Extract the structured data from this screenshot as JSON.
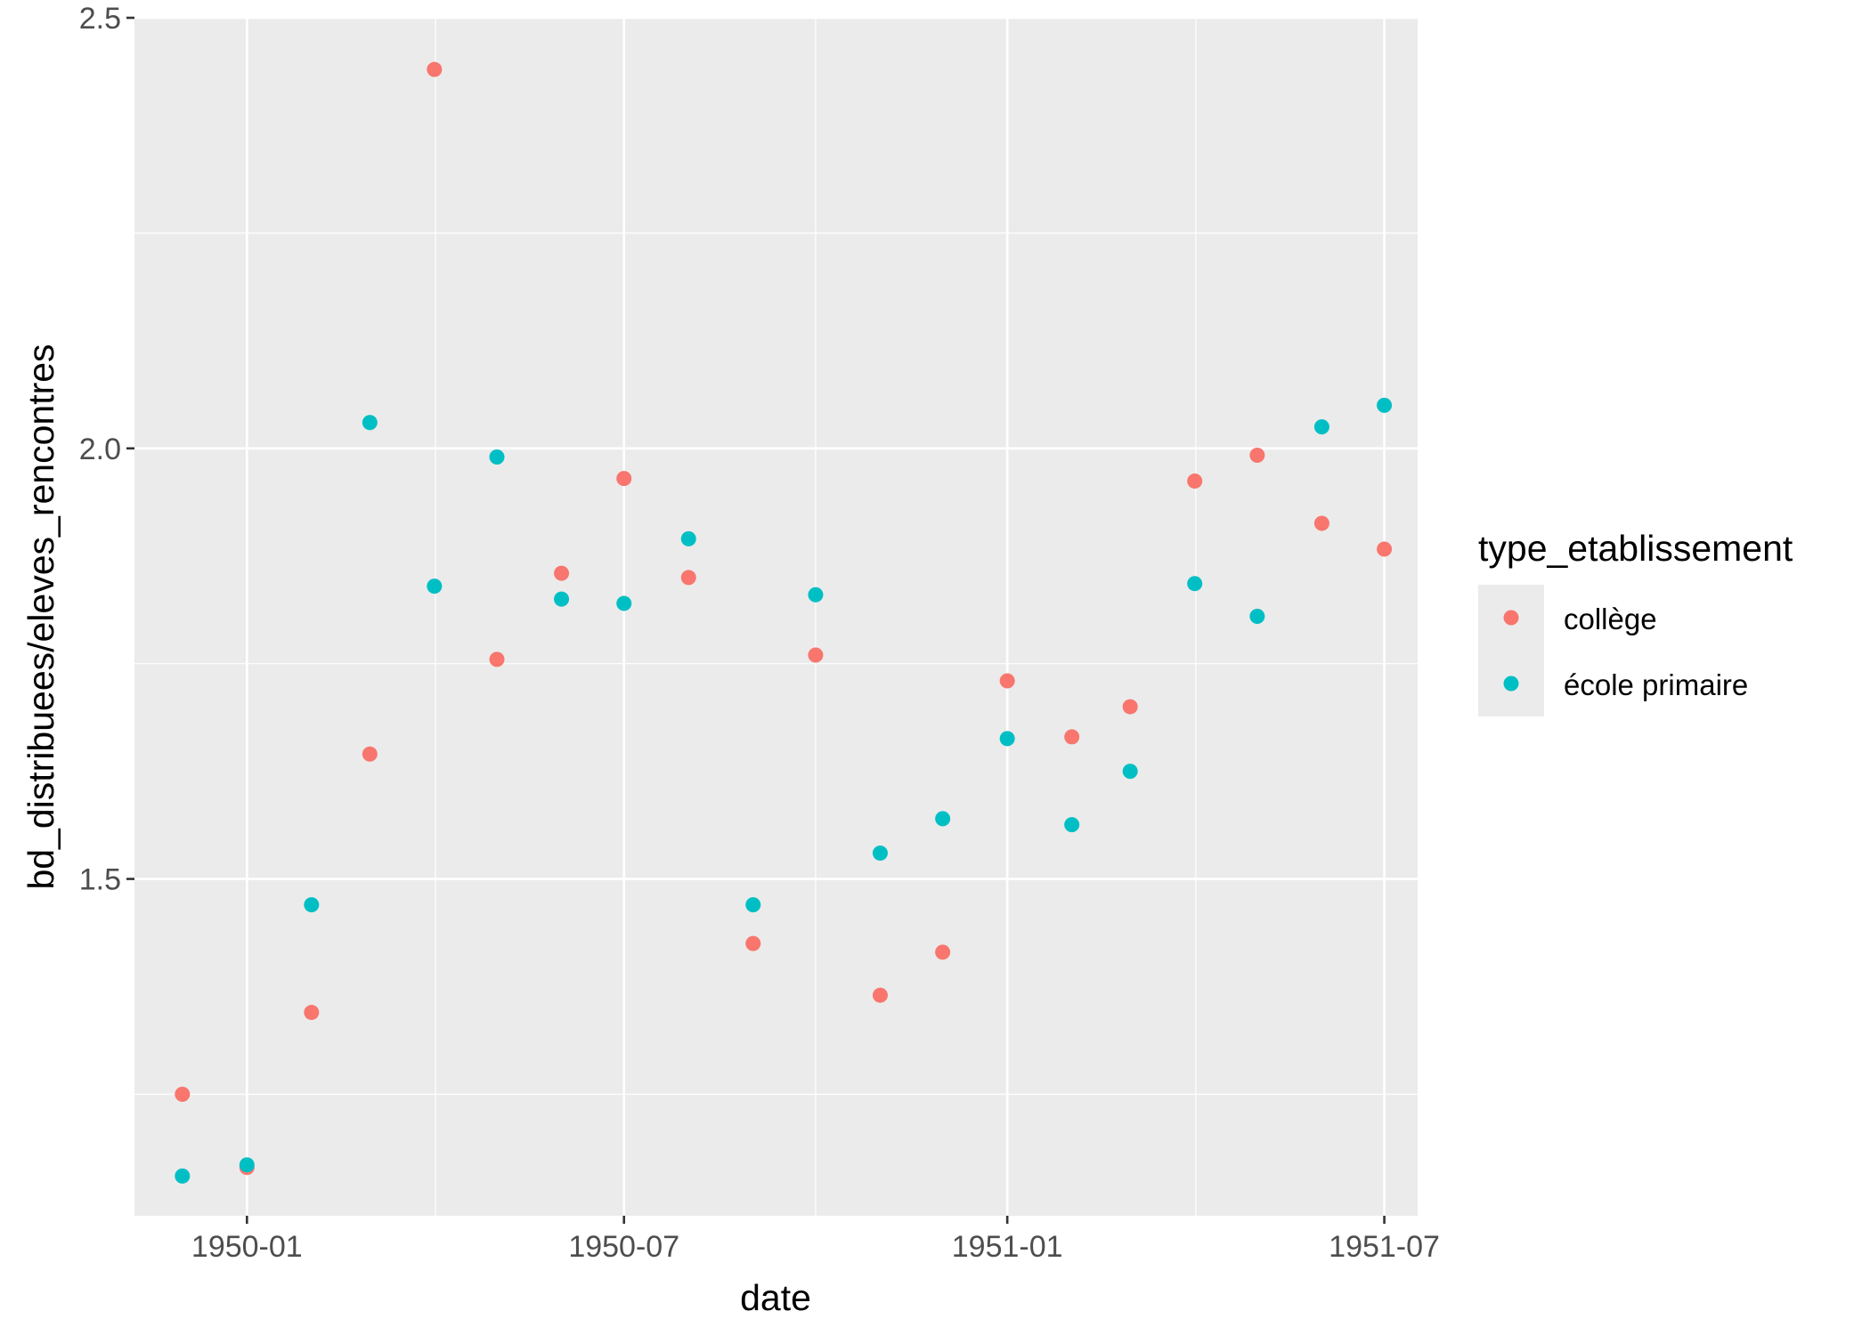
{
  "chart_data": {
    "type": "scatter",
    "xlabel": "date",
    "ylabel": "bd_distribuees/eleves_rencontres",
    "xlim": [
      "1949-11-08",
      "1951-07-17"
    ],
    "ylim": [
      1.1089,
      2.5
    ],
    "x_ticks": [
      "1950-01",
      "1950-07",
      "1951-01",
      "1951-07"
    ],
    "y_ticks": [
      "1.5",
      "2.0",
      "2.5"
    ],
    "y_tick_values": [
      1.5,
      2.0,
      2.5
    ],
    "y_minor_ticks": [
      1.25,
      1.75,
      2.25
    ],
    "grid": true,
    "panel_background": "#ebebeb",
    "legend": {
      "title": "type_etablissement",
      "position": "right",
      "entries": [
        {
          "label": "collège",
          "color": "#f8766d"
        },
        {
          "label": "école primaire",
          "color": "#00bfc4"
        }
      ]
    },
    "series": [
      {
        "name": "collège",
        "color": "#f8766d",
        "points": [
          {
            "x": "1949-12-01",
            "y": 1.25
          },
          {
            "x": "1950-01-01",
            "y": 1.165
          },
          {
            "x": "1950-02-01",
            "y": 1.345
          },
          {
            "x": "1950-03-01",
            "y": 1.645
          },
          {
            "x": "1950-04-01",
            "y": 2.44
          },
          {
            "x": "1950-05-01",
            "y": 1.755
          },
          {
            "x": "1950-06-01",
            "y": 1.855
          },
          {
            "x": "1950-07-01",
            "y": 1.965
          },
          {
            "x": "1950-08-01",
            "y": 1.85
          },
          {
            "x": "1950-09-01",
            "y": 1.425
          },
          {
            "x": "1950-10-01",
            "y": 1.76
          },
          {
            "x": "1950-11-01",
            "y": 1.365
          },
          {
            "x": "1950-12-01",
            "y": 1.415
          },
          {
            "x": "1951-01-01",
            "y": 1.73
          },
          {
            "x": "1951-02-01",
            "y": 1.665
          },
          {
            "x": "1951-03-01",
            "y": 1.7
          },
          {
            "x": "1951-04-01",
            "y": 1.962
          },
          {
            "x": "1951-05-01",
            "y": 1.992
          },
          {
            "x": "1951-06-01",
            "y": 1.913
          },
          {
            "x": "1951-07-01",
            "y": 1.883
          }
        ]
      },
      {
        "name": "école primaire",
        "color": "#00bfc4",
        "points": [
          {
            "x": "1949-12-01",
            "y": 1.155
          },
          {
            "x": "1950-01-01",
            "y": 1.168
          },
          {
            "x": "1950-02-01",
            "y": 1.47
          },
          {
            "x": "1950-03-01",
            "y": 2.03
          },
          {
            "x": "1950-04-01",
            "y": 1.84
          },
          {
            "x": "1950-05-01",
            "y": 1.99
          },
          {
            "x": "1950-06-01",
            "y": 1.825
          },
          {
            "x": "1950-07-01",
            "y": 1.82
          },
          {
            "x": "1950-08-01",
            "y": 1.895
          },
          {
            "x": "1950-09-01",
            "y": 1.47
          },
          {
            "x": "1950-10-01",
            "y": 1.83
          },
          {
            "x": "1950-11-01",
            "y": 1.53
          },
          {
            "x": "1950-12-01",
            "y": 1.57
          },
          {
            "x": "1951-01-01",
            "y": 1.663
          },
          {
            "x": "1951-02-01",
            "y": 1.563
          },
          {
            "x": "1951-03-01",
            "y": 1.625
          },
          {
            "x": "1951-04-01",
            "y": 1.843
          },
          {
            "x": "1951-05-01",
            "y": 1.805
          },
          {
            "x": "1951-06-01",
            "y": 2.025
          },
          {
            "x": "1951-07-01",
            "y": 2.05
          }
        ]
      }
    ]
  }
}
